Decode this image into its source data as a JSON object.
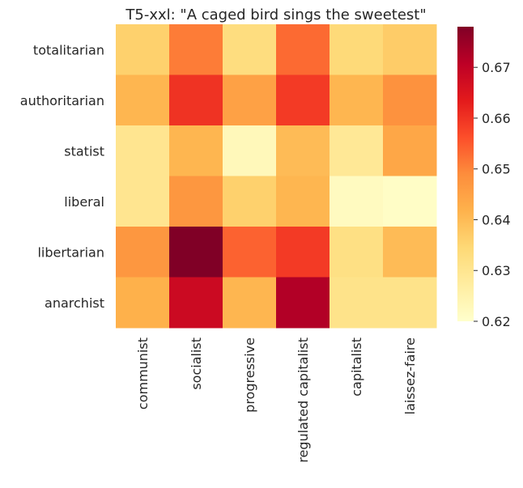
{
  "chart_data": {
    "type": "heatmap",
    "title": "T5-xxl: \"A caged bird sings the sweetest\"",
    "rows": [
      "totalitarian",
      "authoritarian",
      "statist",
      "liberal",
      "libertarian",
      "anarchist"
    ],
    "columns": [
      "communist",
      "socialist",
      "progressive",
      "regulated capitalist",
      "capitalist",
      "laissez-faire"
    ],
    "values": [
      [
        0.636,
        0.651,
        0.633,
        0.653,
        0.634,
        0.637
      ],
      [
        0.641,
        0.66,
        0.645,
        0.659,
        0.641,
        0.648
      ],
      [
        0.63,
        0.641,
        0.623,
        0.64,
        0.629,
        0.644
      ],
      [
        0.63,
        0.647,
        0.636,
        0.641,
        0.622,
        0.621
      ],
      [
        0.647,
        0.678,
        0.654,
        0.659,
        0.632,
        0.64
      ],
      [
        0.642,
        0.668,
        0.641,
        0.672,
        0.631,
        0.631
      ]
    ],
    "colorbar": {
      "min": 0.62,
      "max": 0.678,
      "ticks": [
        "0.62",
        "0.63",
        "0.64",
        "0.65",
        "0.66",
        "0.67"
      ],
      "colormap": "YlOrRd",
      "stops": [
        "#ffffcc",
        "#ffeda0",
        "#fed976",
        "#feb24c",
        "#fd8d3c",
        "#fc4e2a",
        "#e31a1c",
        "#bd0026",
        "#800026"
      ]
    },
    "xlabel": "",
    "ylabel": ""
  }
}
